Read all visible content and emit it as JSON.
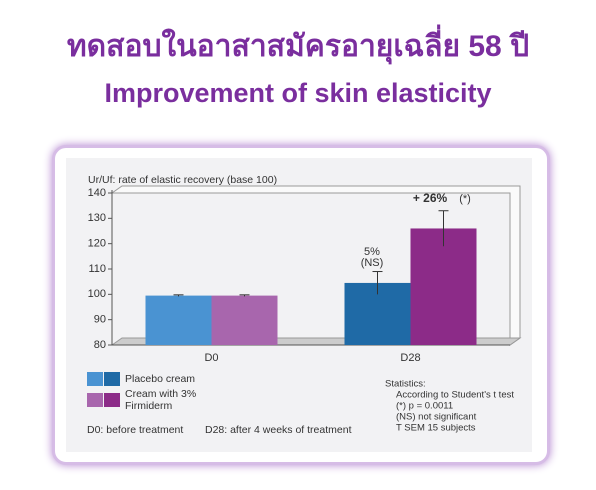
{
  "header": {
    "title": "ทดสอบในอาสาสมัครอายุเฉลี่ย 58 ปี",
    "subtitle": "Improvement of skin elasticity"
  },
  "chart_data": {
    "type": "bar",
    "y_label": "Ur/Uf: rate of elastic recovery (base 100)",
    "categories": [
      "D0",
      "D28"
    ],
    "series": [
      {
        "name": "Placebo cream",
        "colors": [
          "#4a93d2",
          "#1f6aa6"
        ],
        "values": [
          99.5,
          104.5
        ],
        "errors": [
          0.3,
          4.5
        ]
      },
      {
        "name": "Cream with 3% Firmiderm",
        "colors": [
          "#a866ad",
          "#8c2b88"
        ],
        "values": [
          99.5,
          126
        ],
        "errors": [
          0.3,
          7
        ]
      }
    ],
    "ylim": [
      80,
      140
    ],
    "yticks": [
      80,
      90,
      100,
      110,
      120,
      130,
      140
    ],
    "grid": false,
    "annotations": [
      "5%",
      "(NS)",
      "+ 26%",
      "(*)"
    ],
    "notes": [
      "D0: before treatment",
      "D28: after 4 weeks of treatment"
    ],
    "statistics": [
      "Statistics:",
      "According to Student's t test",
      "(*)    p = 0.0011",
      "(NS) not significant",
      "T      SEM 15 subjects"
    ]
  }
}
